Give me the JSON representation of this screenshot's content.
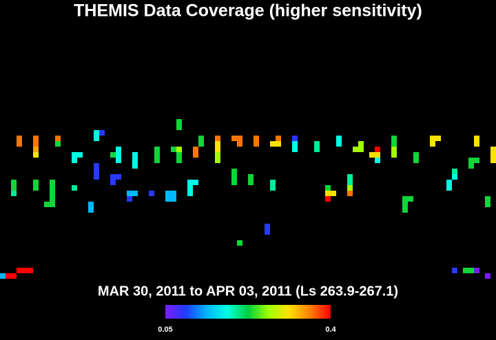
{
  "chart_data": {
    "type": "coverage-map",
    "title": "THEMIS Data Coverage (higher sensitivity)",
    "subtitle": "MAR 30, 2011 to APR 03, 2011 (Ls 263.9-267.1)",
    "clim": [
      0.05,
      0.4
    ],
    "cticks": [
      0.05,
      0.4
    ],
    "colorscale": [
      "#7a1cff",
      "#1f3cff",
      "#00b4ff",
      "#00ffe0",
      "#00d040",
      "#a0ff00",
      "#ffe000",
      "#ff8000",
      "#ff0000"
    ],
    "x": [
      3,
      3,
      6,
      6,
      6,
      6,
      10,
      10,
      18,
      17,
      17,
      13,
      14,
      13,
      21,
      21,
      21,
      20,
      24,
      24,
      24,
      28,
      28,
      28,
      31,
      32,
      32,
      32,
      32,
      32,
      36,
      36,
      35,
      35,
      39,
      39,
      39,
      39,
      39,
      42,
      43,
      43,
      46,
      46,
      49,
      50,
      50,
      53,
      53,
      53,
      57,
      57,
      61,
      61,
      64,
      65,
      65,
      68,
      67,
      68,
      68,
      71,
      71,
      71,
      71,
      75,
      75,
      78,
      78,
      79,
      86,
      86,
      89,
      89,
      89,
      85,
      86,
      85,
      17,
      17,
      17,
      20,
      21,
      20,
      2,
      2,
      2,
      6,
      6,
      9,
      9,
      9,
      9,
      8,
      9,
      13,
      16,
      16,
      23,
      24,
      23,
      27,
      30,
      31,
      30,
      31,
      34,
      35,
      34,
      34,
      42,
      42,
      42,
      45,
      45,
      49,
      49,
      59,
      59,
      60,
      59,
      63,
      63,
      63,
      63,
      73,
      74,
      73,
      73,
      82,
      82,
      81,
      81,
      88,
      88,
      48,
      48,
      43,
      3,
      4,
      5,
      1,
      2,
      0,
      82,
      84,
      85,
      86,
      88
    ],
    "y": [
      25,
      26,
      25,
      26,
      27,
      28,
      25,
      26,
      24,
      24,
      25,
      28,
      28,
      29,
      27,
      28,
      29,
      28,
      28,
      29,
      30,
      27,
      28,
      29,
      27,
      27,
      28,
      29,
      22,
      23,
      25,
      26,
      27,
      28,
      25,
      26,
      27,
      28,
      29,
      25,
      25,
      26,
      25,
      26,
      26,
      25,
      26,
      25,
      26,
      27,
      26,
      27,
      25,
      26,
      27,
      26,
      27,
      27,
      28,
      28,
      29,
      25,
      26,
      27,
      28,
      28,
      29,
      25,
      26,
      25,
      25,
      26,
      27,
      28,
      29,
      29,
      29,
      30,
      30,
      31,
      32,
      32,
      32,
      33,
      33,
      34,
      35,
      33,
      34,
      33,
      34,
      35,
      36,
      37,
      37,
      34,
      37,
      38,
      35,
      35,
      36,
      35,
      35,
      35,
      36,
      36,
      33,
      33,
      34,
      35,
      31,
      32,
      33,
      32,
      33,
      33,
      34,
      34,
      35,
      35,
      36,
      32,
      33,
      34,
      35,
      36,
      36,
      37,
      38,
      31,
      32,
      33,
      34,
      36,
      37,
      41,
      42,
      44,
      49,
      49,
      49,
      50,
      50,
      50,
      49,
      49,
      49,
      49,
      50
    ],
    "values": [
      0.36,
      0.36,
      0.36,
      0.36,
      0.34,
      0.31,
      0.36,
      0.23,
      0.09,
      0.18,
      0.18,
      0.18,
      0.18,
      0.18,
      0.18,
      0.18,
      0.18,
      0.23,
      0.18,
      0.18,
      0.18,
      0.23,
      0.23,
      0.23,
      0.23,
      0.27,
      0.23,
      0.23,
      0.23,
      0.23,
      0.23,
      0.23,
      0.36,
      0.36,
      0.36,
      0.31,
      0.31,
      0.27,
      0.27,
      0.36,
      0.36,
      0.36,
      0.36,
      0.36,
      0.31,
      0.36,
      0.31,
      0.09,
      0.18,
      0.18,
      0.2,
      0.2,
      0.18,
      0.18,
      0.27,
      0.27,
      0.27,
      0.4,
      0.31,
      0.31,
      0.18,
      0.23,
      0.23,
      0.27,
      0.27,
      0.23,
      0.23,
      0.31,
      0.31,
      0.31,
      0.31,
      0.31,
      0.31,
      0.31,
      0.31,
      0.23,
      0.23,
      0.23,
      0.09,
      0.09,
      0.09,
      0.09,
      0.09,
      0.09,
      0.23,
      0.23,
      0.2,
      0.23,
      0.23,
      0.23,
      0.23,
      0.23,
      0.23,
      0.23,
      0.23,
      0.2,
      0.14,
      0.14,
      0.14,
      0.14,
      0.09,
      0.09,
      0.14,
      0.14,
      0.14,
      0.14,
      0.18,
      0.18,
      0.18,
      0.18,
      0.23,
      0.23,
      0.23,
      0.23,
      0.23,
      0.2,
      0.2,
      0.23,
      0.31,
      0.31,
      0.4,
      0.2,
      0.2,
      0.27,
      0.36,
      0.23,
      0.23,
      0.23,
      0.23,
      0.2,
      0.18,
      0.18,
      0.18,
      0.23,
      0.23,
      0.09,
      0.09,
      0.23,
      0.4,
      0.4,
      0.4,
      0.4,
      0.4,
      0.14,
      0.09,
      0.23,
      0.23,
      0.05,
      0.05
    ]
  }
}
